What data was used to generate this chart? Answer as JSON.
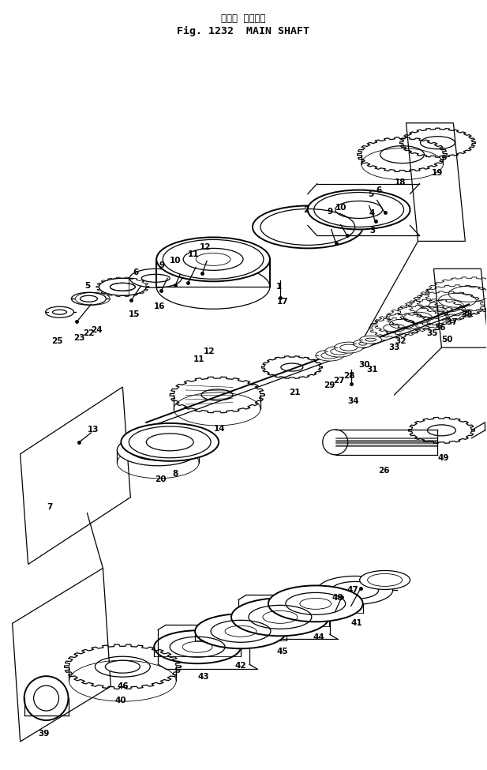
{
  "title_jp": "メイン  シャフト",
  "title_en": "Fig. 1232  MAIN SHAFT",
  "bg": "#ffffff",
  "lc": "#000000",
  "fig_w": 6.17,
  "fig_h": 9.75,
  "dpi": 100
}
